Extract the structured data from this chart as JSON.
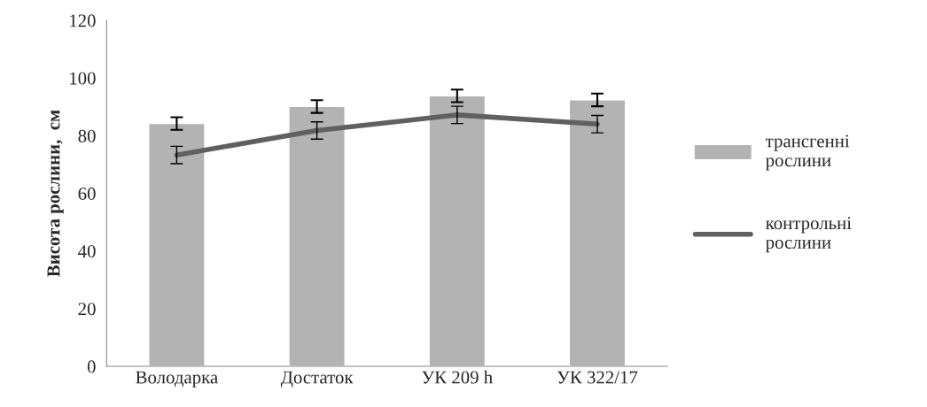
{
  "chart_data": {
    "type": "bar",
    "ylabel": "Висота рослини,  см",
    "categories": [
      "Володарка",
      "Достаток",
      "УК 209 h",
      "УК 322/17"
    ],
    "series": [
      {
        "name": "трансгенні\nрослини",
        "color": "#b3b3b3",
        "values": [
          84.2,
          90.1,
          93.8,
          92.4
        ],
        "errors": [
          2.2,
          2.2,
          2.2,
          2.2
        ]
      },
      {
        "name": "контрольні\nрослини",
        "type": "line",
        "color": "#606060",
        "values": [
          73.3,
          81.8,
          87.2,
          84.0
        ],
        "errors": [
          3,
          3,
          3,
          3
        ]
      }
    ],
    "ylim": [
      0,
      120
    ],
    "yticks": [
      0,
      20,
      40,
      60,
      80,
      100,
      120
    ],
    "grid": false,
    "legend": "right"
  }
}
